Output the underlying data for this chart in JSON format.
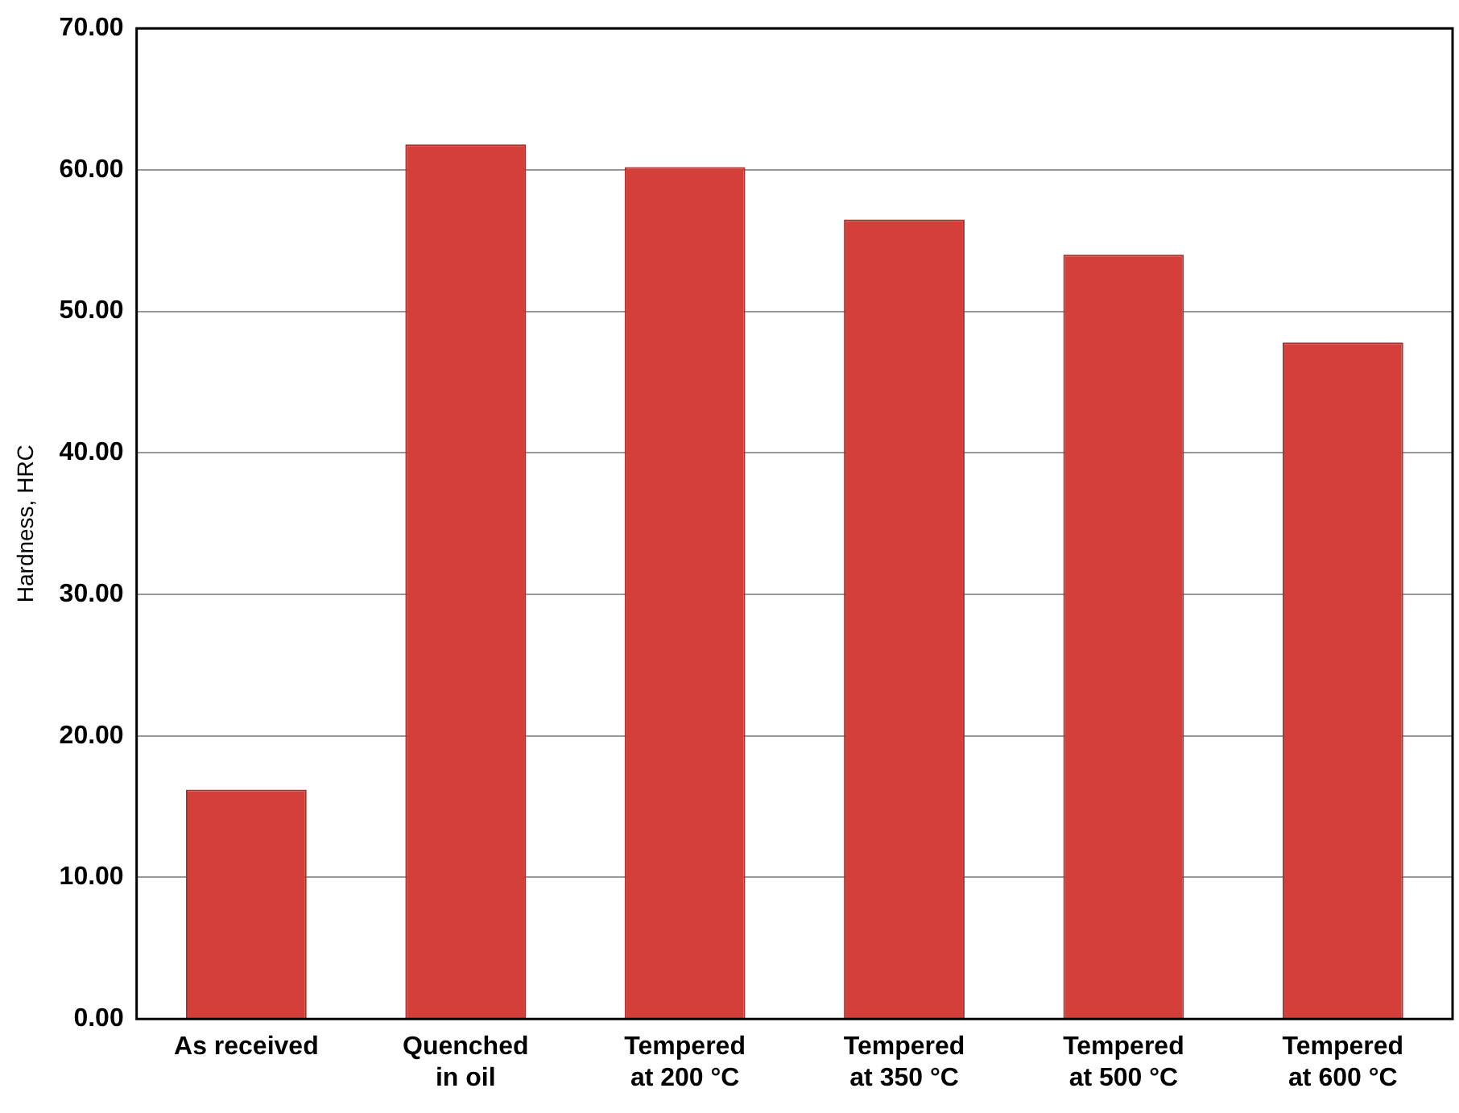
{
  "chart_data": {
    "type": "bar",
    "ylabel": "Hardness, HRC",
    "categories": [
      "As received",
      "Quenched in oil",
      "Tempered at 200 °C",
      "Tempered at 350 °C",
      "Tempered at 500 °C",
      "Tempered at 600 °C"
    ],
    "values": [
      16.2,
      61.8,
      60.2,
      56.5,
      54.0,
      47.8
    ],
    "color": "#d43f3a",
    "ylim": [
      0,
      70
    ],
    "yticks": [
      {
        "value": 0,
        "label": "0.00"
      },
      {
        "value": 10,
        "label": "10.00"
      },
      {
        "value": 20,
        "label": "20.00"
      },
      {
        "value": 30,
        "label": "30.00"
      },
      {
        "value": 40,
        "label": "40.00"
      },
      {
        "value": 50,
        "label": "50.00"
      },
      {
        "value": 60,
        "label": "60.00"
      },
      {
        "value": 70,
        "label": "70.00"
      }
    ],
    "grid": "y",
    "legend": false
  }
}
